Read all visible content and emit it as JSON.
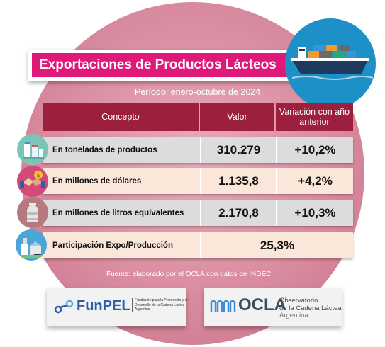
{
  "header": {
    "title": "Exportaciones de Productos Lácteos",
    "period": "Período: enero-octubre de 2024"
  },
  "table": {
    "columns": [
      "Concepto",
      "Valor",
      "Variación con año anterior"
    ],
    "rows": [
      {
        "label": "En toneladas de productos",
        "value": "310.279",
        "variation": "+10,2%",
        "icon": "dairy-products-icon"
      },
      {
        "label": "En millones de dólares",
        "value": "1.135,8",
        "variation": "+4,2%",
        "icon": "handshake-dollar-icon"
      },
      {
        "label": "En millones de litros equivalentes",
        "value": "2.170,8",
        "variation": "+10,3%",
        "icon": "milk-can-icon"
      },
      {
        "label": "Participación Expo/Producción",
        "value": "25,3%",
        "icon": "dairy-farm-icon"
      }
    ]
  },
  "source": "Fuente: elaborado por el OCLA con datos de INDEC.",
  "logos": {
    "funpel": {
      "name": "FunPEL",
      "subtitle": "Fundación para la Promoción y el Desarrollo de la Cadena Láctea Argentina"
    },
    "ocla": {
      "name": "OCLA",
      "line1": "Observatorio",
      "line2": "de la Cadena Láctea",
      "line3": "Argentina"
    }
  },
  "colors": {
    "title_bg": "#e0187a",
    "header_bg": "#9c1f3d",
    "row_gray": "#dcdcdc",
    "row_peach": "#fbe6da",
    "circle_bg": "#d98ca0",
    "ship_bg": "#1e90c8"
  }
}
